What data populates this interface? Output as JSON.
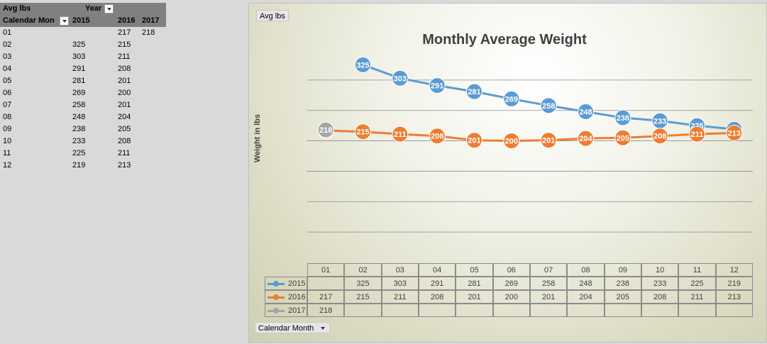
{
  "pivot": {
    "value_field": "Avg lbs",
    "column_field": "Year",
    "row_field": "Calendar Mon",
    "years": [
      "2015",
      "2016",
      "2017"
    ],
    "rows": [
      {
        "month": "01",
        "v2015": "",
        "v2016": "217",
        "v2017": "218"
      },
      {
        "month": "02",
        "v2015": "325",
        "v2016": "215",
        "v2017": ""
      },
      {
        "month": "03",
        "v2015": "303",
        "v2016": "211",
        "v2017": ""
      },
      {
        "month": "04",
        "v2015": "291",
        "v2016": "208",
        "v2017": ""
      },
      {
        "month": "05",
        "v2015": "281",
        "v2016": "201",
        "v2017": ""
      },
      {
        "month": "06",
        "v2015": "269",
        "v2016": "200",
        "v2017": ""
      },
      {
        "month": "07",
        "v2015": "258",
        "v2016": "201",
        "v2017": ""
      },
      {
        "month": "08",
        "v2015": "248",
        "v2016": "204",
        "v2017": ""
      },
      {
        "month": "09",
        "v2015": "238",
        "v2016": "205",
        "v2017": ""
      },
      {
        "month": "10",
        "v2015": "233",
        "v2016": "208",
        "v2017": ""
      },
      {
        "month": "11",
        "v2015": "225",
        "v2016": "211",
        "v2017": ""
      },
      {
        "month": "12",
        "v2015": "219",
        "v2016": "213",
        "v2017": ""
      }
    ]
  },
  "chart_buttons": {
    "value_button": "Avg lbs",
    "axis_button": "Calendar Month"
  },
  "chart_data": {
    "type": "line",
    "title": "Monthly Average Weight",
    "ylabel": "Weight in lbs",
    "xlabel": "",
    "categories": [
      "01",
      "02",
      "03",
      "04",
      "05",
      "06",
      "07",
      "08",
      "09",
      "10",
      "11",
      "12"
    ],
    "ylim": [
      0,
      350
    ],
    "grid": true,
    "legend": "data table",
    "series": [
      {
        "name": "2015",
        "color": "#5b9bd5",
        "values": [
          null,
          325,
          303,
          291,
          281,
          269,
          258,
          248,
          238,
          233,
          225,
          219
        ]
      },
      {
        "name": "2016",
        "color": "#ed7d31",
        "values": [
          217,
          215,
          211,
          208,
          201,
          200,
          201,
          204,
          205,
          208,
          211,
          213
        ]
      },
      {
        "name": "2017",
        "color": "#a5a5a5",
        "values": [
          218,
          null,
          null,
          null,
          null,
          null,
          null,
          null,
          null,
          null,
          null,
          null
        ]
      }
    ]
  }
}
